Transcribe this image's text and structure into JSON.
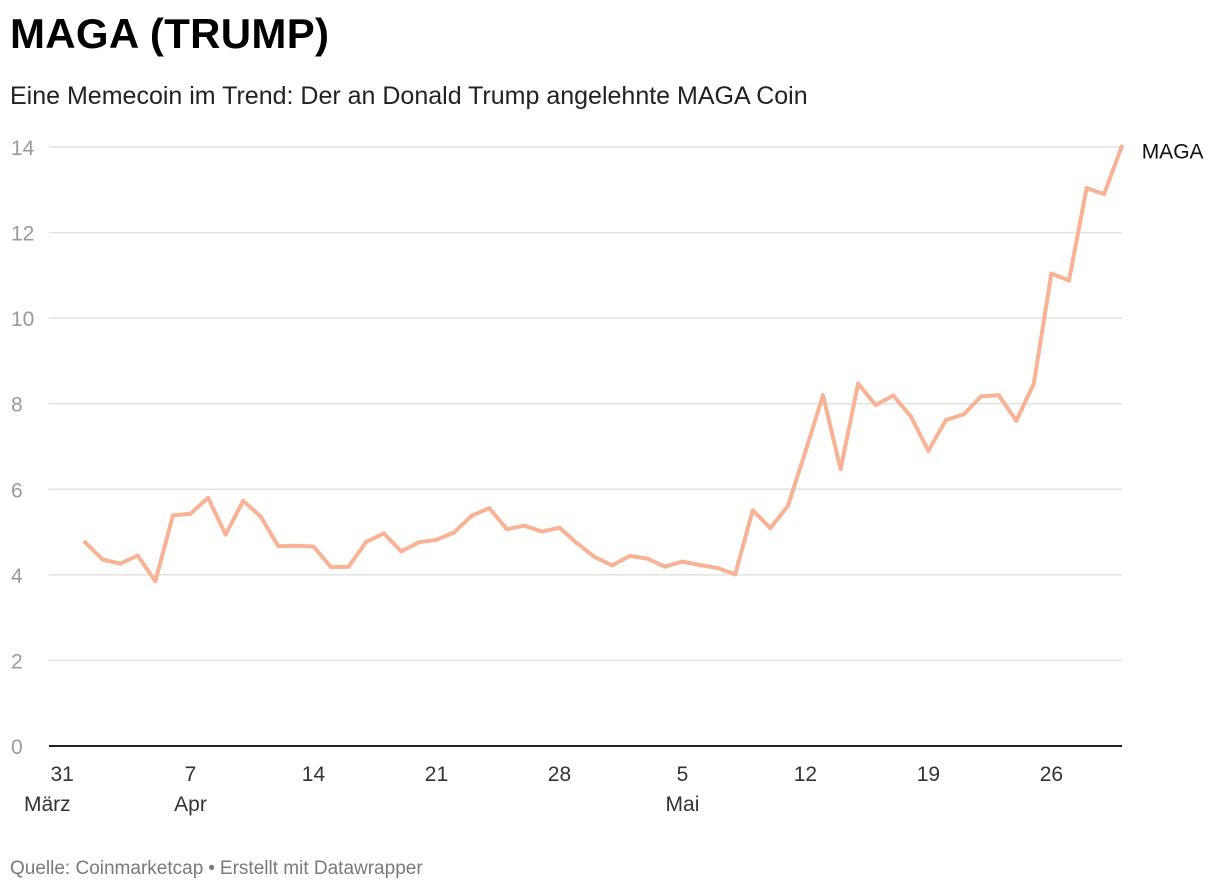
{
  "title": "MAGA (TRUMP)",
  "subtitle": "Eine Memecoin im Trend: Der an Donald Trump angelehnte MAGA Coin",
  "footer": {
    "source": "Quelle: Coinmarketcap",
    "separator": "•",
    "credit": "Erstellt mit Datawrapper"
  },
  "colors": {
    "line": "#f7b394",
    "grid": "#e2e2e2",
    "axis": "#222222",
    "tick": "#9a9a9a"
  },
  "chart_data": {
    "type": "line",
    "title": "MAGA (TRUMP)",
    "xlabel": "",
    "ylabel": "",
    "ylim": [
      0,
      14
    ],
    "yticks": [
      0,
      2,
      4,
      6,
      8,
      10,
      12,
      14
    ],
    "xlim": [
      0,
      61
    ],
    "xticks": [
      {
        "day": 0,
        "label": "31",
        "sub": "März"
      },
      {
        "day": 7,
        "label": "7",
        "sub": "Apr"
      },
      {
        "day": 14,
        "label": "14",
        "sub": ""
      },
      {
        "day": 21,
        "label": "21",
        "sub": ""
      },
      {
        "day": 28,
        "label": "28",
        "sub": ""
      },
      {
        "day": 35,
        "label": "5",
        "sub": "Mai"
      },
      {
        "day": 42,
        "label": "12",
        "sub": ""
      },
      {
        "day": 49,
        "label": "19",
        "sub": ""
      },
      {
        "day": 56,
        "label": "26",
        "sub": ""
      }
    ],
    "series": [
      {
        "name": "MAGA",
        "x": [
          1,
          2,
          3,
          4,
          5,
          6,
          7,
          8,
          9,
          10,
          11,
          12,
          13,
          14,
          15,
          16,
          17,
          18,
          19,
          20,
          21,
          22,
          23,
          24,
          25,
          26,
          27,
          28,
          29,
          30,
          31,
          32,
          33,
          34,
          35,
          36,
          37,
          38,
          39,
          40,
          41,
          42,
          43,
          44,
          45,
          46,
          47,
          48,
          49,
          50,
          51,
          52,
          53,
          54,
          55,
          56,
          57,
          58,
          59,
          60
        ],
        "values": [
          4.76,
          4.36,
          4.26,
          4.45,
          3.85,
          5.39,
          5.43,
          5.8,
          4.94,
          5.73,
          5.36,
          4.67,
          4.68,
          4.66,
          4.18,
          4.19,
          4.77,
          4.97,
          4.55,
          4.76,
          4.82,
          4.99,
          5.38,
          5.56,
          5.07,
          5.15,
          5.01,
          5.1,
          4.74,
          4.42,
          4.22,
          4.44,
          4.38,
          4.19,
          4.31,
          4.23,
          4.16,
          4.01,
          5.51,
          5.09,
          5.61,
          6.88,
          8.2,
          6.47,
          8.47,
          7.97,
          8.19,
          7.7,
          6.9,
          7.62,
          7.75,
          8.17,
          8.2,
          7.6,
          8.47,
          11.04,
          10.88,
          13.04,
          12.9,
          14.01
        ]
      }
    ]
  }
}
